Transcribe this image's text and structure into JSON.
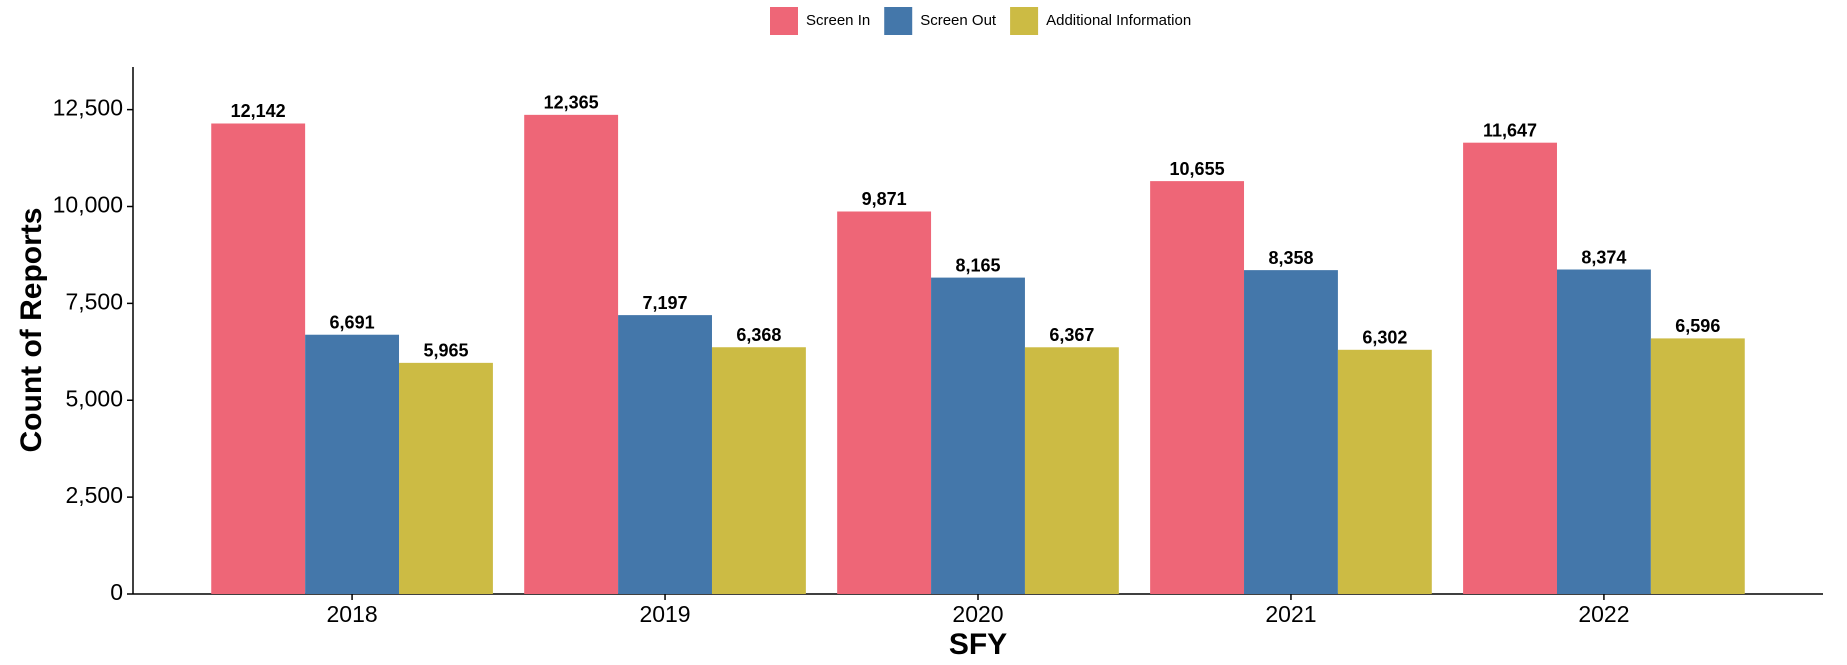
{
  "chart_data": {
    "type": "bar",
    "x_label": "SFY",
    "y_label": "Count of Reports",
    "categories": [
      "2018",
      "2019",
      "2020",
      "2021",
      "2022"
    ],
    "series": [
      {
        "name": "Screen In",
        "color": "#ee6677",
        "values": [
          12142,
          12365,
          9871,
          10655,
          11647
        ],
        "value_labels": [
          "12,142",
          "12,365",
          "9,871",
          "10,655",
          "11,647"
        ]
      },
      {
        "name": "Screen Out",
        "color": "#4477aa",
        "values": [
          6691,
          7197,
          8165,
          8358,
          8374
        ],
        "value_labels": [
          "6,691",
          "7,197",
          "8,165",
          "8,358",
          "8,374"
        ]
      },
      {
        "name": "Additional Information",
        "color": "#ccbb44",
        "values": [
          5965,
          6368,
          6367,
          6302,
          6596
        ],
        "value_labels": [
          "5,965",
          "6,368",
          "6,367",
          "6,302",
          "6,596"
        ]
      }
    ],
    "ylim": [
      0,
      13600
    ],
    "yticks": [
      0,
      {
        "value": 2500,
        "label": "2,500"
      },
      {
        "value": 5000,
        "label": "5,000"
      },
      {
        "value": 7500,
        "label": "7,500"
      },
      {
        "value": 10000,
        "label": "10,000"
      },
      {
        "value": 12500,
        "label": "12,500"
      }
    ],
    "legend": "top",
    "grid": false
  }
}
